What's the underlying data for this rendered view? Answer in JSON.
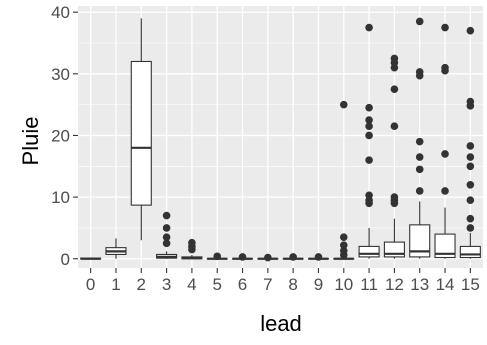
{
  "chart_data": {
    "type": "boxplot",
    "title": "",
    "xlabel": "lead",
    "ylabel": "Pluie",
    "ylim": [
      -1.5,
      41
    ],
    "yticks": [
      0,
      10,
      20,
      30,
      40
    ],
    "grid": true,
    "legend": "none",
    "colors": {
      "panel": "#ebebeb",
      "grid": "#ffffff",
      "box_fill": "#ffffff",
      "box_stroke": "#333333",
      "outlier": "#333333",
      "axis_text": "#4d4d4d",
      "title_text": "#000000"
    },
    "categories": [
      "0",
      "1",
      "2",
      "3",
      "4",
      "5",
      "6",
      "7",
      "8",
      "9",
      "10",
      "11",
      "12",
      "13",
      "14",
      "15"
    ],
    "boxes": [
      {
        "lead": "0",
        "min": 0,
        "q1": 0,
        "median": 0,
        "q3": 0.1,
        "max": 0.2,
        "outliers": []
      },
      {
        "lead": "1",
        "min": 0,
        "q1": 0.7,
        "median": 1.2,
        "q3": 1.8,
        "max": 3.3,
        "outliers": []
      },
      {
        "lead": "2",
        "min": 3,
        "q1": 8.7,
        "median": 18,
        "q3": 32,
        "max": 39,
        "outliers": []
      },
      {
        "lead": "3",
        "min": 0,
        "q1": 0.1,
        "median": 0.3,
        "q3": 0.7,
        "max": 1.2,
        "outliers": [
          7,
          5,
          3.5,
          2.5
        ]
      },
      {
        "lead": "4",
        "min": 0,
        "q1": 0,
        "median": 0.1,
        "q3": 0.3,
        "max": 0.6,
        "outliers": [
          2.6,
          2,
          1.5
        ]
      },
      {
        "lead": "5",
        "min": 0,
        "q1": 0,
        "median": 0,
        "q3": 0,
        "max": 0.1,
        "outliers": [
          0.4
        ]
      },
      {
        "lead": "6",
        "min": 0,
        "q1": 0,
        "median": 0,
        "q3": 0,
        "max": 0,
        "outliers": [
          0.3
        ]
      },
      {
        "lead": "7",
        "min": 0,
        "q1": 0,
        "median": 0,
        "q3": 0,
        "max": 0,
        "outliers": [
          0.2
        ]
      },
      {
        "lead": "8",
        "min": 0,
        "q1": 0,
        "median": 0,
        "q3": 0,
        "max": 0,
        "outliers": [
          0.3
        ]
      },
      {
        "lead": "9",
        "min": 0,
        "q1": 0,
        "median": 0,
        "q3": 0,
        "max": 0,
        "outliers": [
          0.3
        ]
      },
      {
        "lead": "10",
        "min": 0,
        "q1": 0,
        "median": 0,
        "q3": 0,
        "max": 0,
        "outliers": [
          25,
          3.5,
          2.2,
          1.3,
          0.6
        ]
      },
      {
        "lead": "11",
        "min": 0,
        "q1": 0.3,
        "median": 0.8,
        "q3": 2,
        "max": 5,
        "outliers": [
          37.5,
          24.5,
          22.5,
          21.5,
          20,
          16,
          10.3,
          9.5,
          9
        ]
      },
      {
        "lead": "12",
        "min": 0,
        "q1": 0.3,
        "median": 0.8,
        "q3": 2.7,
        "max": 6.5,
        "outliers": [
          32.5,
          31.8,
          31,
          27.5,
          21.5,
          10,
          9.5,
          9
        ]
      },
      {
        "lead": "13",
        "min": 0,
        "q1": 0.3,
        "median": 1.2,
        "q3": 5.5,
        "max": 9.3,
        "outliers": [
          38.5,
          30.3,
          29.7,
          19,
          16.5,
          14.5,
          11
        ]
      },
      {
        "lead": "14",
        "min": 0,
        "q1": 0.2,
        "median": 0.8,
        "q3": 4,
        "max": 8.3,
        "outliers": [
          37.5,
          31,
          30.5,
          17,
          11
        ]
      },
      {
        "lead": "15",
        "min": 0,
        "q1": 0.2,
        "median": 0.7,
        "q3": 2,
        "max": 4.2,
        "outliers": [
          37,
          25.5,
          24.8,
          18.3,
          16.5,
          15,
          12,
          9.5,
          6.5,
          5
        ]
      }
    ]
  }
}
